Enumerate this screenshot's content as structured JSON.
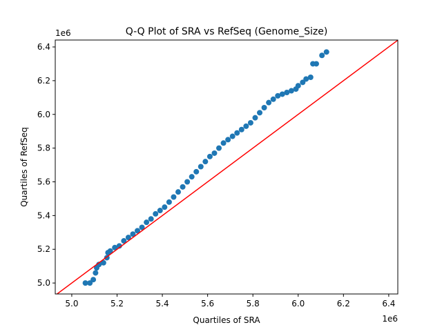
{
  "chart_data": {
    "type": "scatter",
    "title": "Q-Q Plot of SRA vs RefSeq (Genome_Size)",
    "x_label": "Quartiles of SRA",
    "y_label": "Quartiles of RefSeq",
    "x_offset_label": "1e6",
    "y_offset_label": "1e6",
    "xlim": [
      4927000,
      6440000
    ],
    "ylim": [
      4935000,
      6441000
    ],
    "xticks": [
      {
        "value": 5000000,
        "label": "5.0"
      },
      {
        "value": 5200000,
        "label": "5.2"
      },
      {
        "value": 5400000,
        "label": "5.4"
      },
      {
        "value": 5600000,
        "label": "5.6"
      },
      {
        "value": 5800000,
        "label": "5.8"
      },
      {
        "value": 6000000,
        "label": "6.0"
      },
      {
        "value": 6200000,
        "label": "6.2"
      },
      {
        "value": 6400000,
        "label": "6.4"
      }
    ],
    "yticks": [
      {
        "value": 5000000,
        "label": "5.0"
      },
      {
        "value": 5200000,
        "label": "5.2"
      },
      {
        "value": 5400000,
        "label": "5.4"
      },
      {
        "value": 5600000,
        "label": "5.6"
      },
      {
        "value": 5800000,
        "label": "5.8"
      },
      {
        "value": 6000000,
        "label": "6.0"
      },
      {
        "value": 6200000,
        "label": "6.2"
      },
      {
        "value": 6400000,
        "label": "6.4"
      }
    ],
    "series": [
      {
        "color": "#1f77b4",
        "x": [
          5060000,
          5080000,
          5095000,
          5105000,
          5110000,
          5120000,
          5140000,
          5155000,
          5160000,
          5170000,
          5190000,
          5210000,
          5230000,
          5250000,
          5270000,
          5290000,
          5310000,
          5330000,
          5350000,
          5370000,
          5390000,
          5410000,
          5430000,
          5450000,
          5470000,
          5490000,
          5510000,
          5530000,
          5550000,
          5570000,
          5590000,
          5610000,
          5630000,
          5650000,
          5670000,
          5690000,
          5710000,
          5730000,
          5750000,
          5770000,
          5790000,
          5810000,
          5830000,
          5850000,
          5870000,
          5890000,
          5910000,
          5930000,
          5950000,
          5970000,
          5990000,
          6000000,
          6020000,
          6035000,
          6055000,
          6065000,
          6080000,
          6105000,
          6125000
        ],
        "values": [
          5000000,
          5000000,
          5020000,
          5060000,
          5090000,
          5110000,
          5120000,
          5150000,
          5180000,
          5190000,
          5210000,
          5220000,
          5250000,
          5270000,
          5290000,
          5310000,
          5330000,
          5360000,
          5380000,
          5410000,
          5430000,
          5450000,
          5480000,
          5510000,
          5540000,
          5570000,
          5600000,
          5630000,
          5660000,
          5690000,
          5720000,
          5750000,
          5770000,
          5800000,
          5830000,
          5850000,
          5870000,
          5890000,
          5910000,
          5930000,
          5950000,
          5980000,
          6010000,
          6040000,
          6070000,
          6090000,
          6110000,
          6120000,
          6130000,
          6140000,
          6150000,
          6170000,
          6190000,
          6210000,
          6220000,
          6300000,
          6300000,
          6350000,
          6370000
        ]
      }
    ],
    "reference_line": {
      "color": "#ff0000",
      "x": [
        4927000,
        6440000
      ],
      "y": [
        4927000,
        6440000
      ]
    }
  }
}
